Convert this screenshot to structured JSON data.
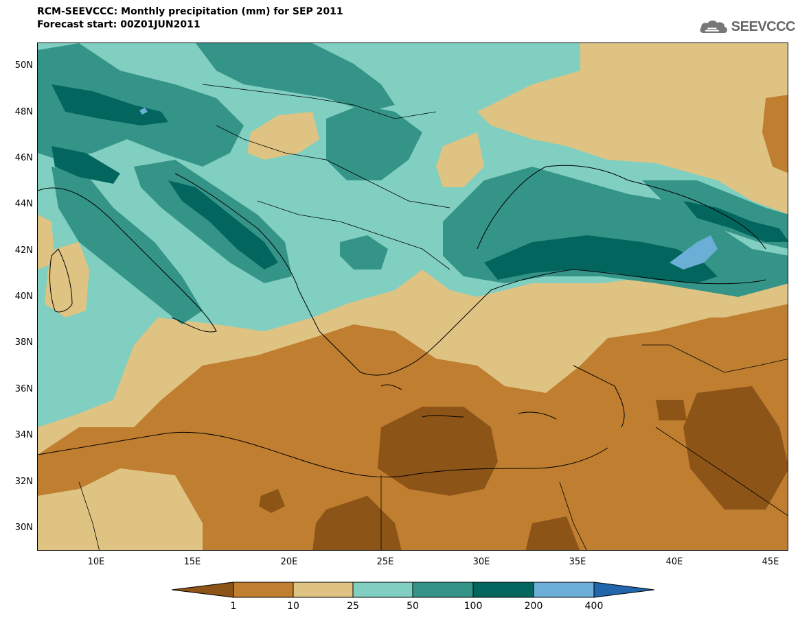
{
  "header": {
    "title_line1": "RCM-SEEVCCC: Monthly precipitation (mm) for SEP 2011",
    "title_line2": "Forecast start: 00Z01JUN2011"
  },
  "logo": {
    "text": "SEEVCCC",
    "icon": "cloud-logo-icon"
  },
  "map": {
    "lat_labels": [
      "50N",
      "48N",
      "46N",
      "44N",
      "42N",
      "40N",
      "38N",
      "36N",
      "34N",
      "32N",
      "30N"
    ],
    "lon_labels": [
      "10E",
      "15E",
      "20E",
      "25E",
      "30E",
      "35E",
      "40E",
      "45E"
    ]
  },
  "legend": {
    "labels": [
      "1",
      "10",
      "25",
      "50",
      "100",
      "200",
      "400"
    ],
    "colors": [
      "#8c5416",
      "#bf7e30",
      "#dfc383",
      "#80cfc1",
      "#359488",
      "#02665e",
      "#6baed6",
      "#2166ac"
    ]
  }
}
